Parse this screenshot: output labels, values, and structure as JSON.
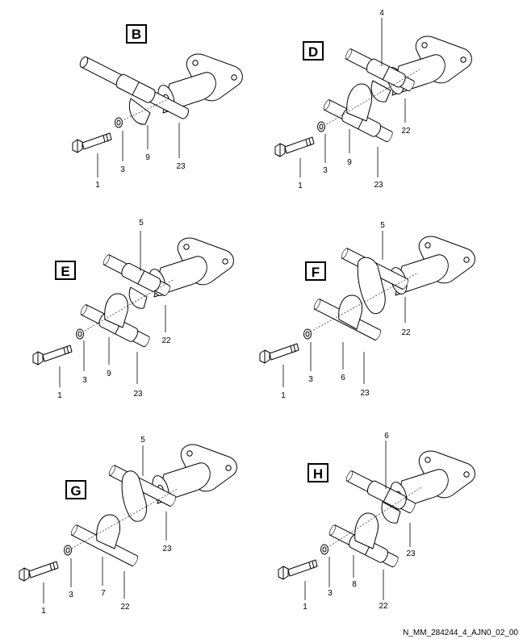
{
  "reference_code": "N_MM_284244_4_AJN0_02_00",
  "variants": [
    {
      "tag": "B",
      "callouts": {
        "bolt": "1",
        "washer": "3",
        "clip": "9",
        "tube": "23"
      }
    },
    {
      "tag": "D",
      "callouts": {
        "upper_clip": "4",
        "bolt": "1",
        "washer": "3",
        "clip": "9",
        "lower_tube": "23",
        "upper_tube": "22"
      }
    },
    {
      "tag": "E",
      "callouts": {
        "upper_clip": "5",
        "bolt": "1",
        "washer": "3",
        "clip": "9",
        "lower_tube": "23",
        "upper_tube": "22"
      }
    },
    {
      "tag": "F",
      "callouts": {
        "upper_clip": "5",
        "bolt": "1",
        "washer": "3",
        "clip": "6",
        "lower_tube": "23",
        "upper_tube": "22"
      }
    },
    {
      "tag": "G",
      "callouts": {
        "upper_clip": "5",
        "bolt": "1",
        "washer": "3",
        "clip": "7",
        "lower_tube": "22",
        "upper_tube": "23"
      }
    },
    {
      "tag": "H",
      "callouts": {
        "upper_clip": "6",
        "bolt": "1",
        "washer": "3",
        "clip": "8",
        "lower_tube": "22",
        "upper_tube": "23"
      }
    }
  ]
}
